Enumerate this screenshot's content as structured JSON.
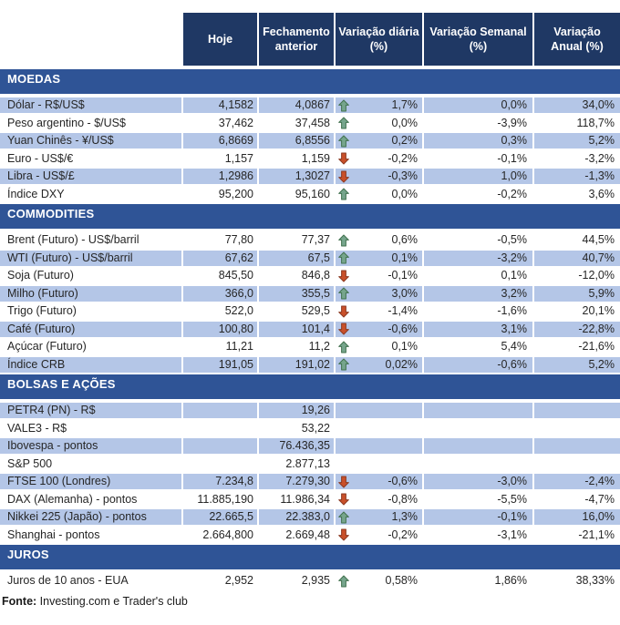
{
  "header": {
    "columns": [
      {
        "label": "Hoje",
        "lines": [
          "Hoje"
        ]
      },
      {
        "label": "Fechamento anterior",
        "lines": [
          "Fechamento",
          "anterior"
        ]
      },
      {
        "label": "Variação diária (%)",
        "lines": [
          "Variação diária",
          "(%)"
        ]
      },
      {
        "label": "Variação Semanal (%)",
        "lines": [
          "Variação Semanal",
          "(%)"
        ]
      },
      {
        "label": "Variação Anual (%)",
        "lines": [
          "Variação",
          "Anual (%)"
        ]
      }
    ]
  },
  "sections": [
    {
      "title": "MOEDAS",
      "rows": [
        {
          "label": "Dólar - R$/US$",
          "hoje": "4,1582",
          "fechamento": "4,0867",
          "arrow": "up",
          "diaria": "1,7%",
          "semanal": "0,0%",
          "anual": "34,0%",
          "shaded": true
        },
        {
          "label": "Peso argentino - $/US$",
          "hoje": "37,462",
          "fechamento": "37,458",
          "arrow": "up",
          "diaria": "0,0%",
          "semanal": "-3,9%",
          "anual": "118,7%",
          "shaded": false
        },
        {
          "label": "Yuan Chinês - ¥/US$",
          "hoje": "6,8669",
          "fechamento": "6,8556",
          "arrow": "up",
          "diaria": "0,2%",
          "semanal": "0,3%",
          "anual": "5,2%",
          "shaded": true
        },
        {
          "label": "Euro - US$/€",
          "hoje": "1,157",
          "fechamento": "1,159",
          "arrow": "down",
          "diaria": "-0,2%",
          "semanal": "-0,1%",
          "anual": "-3,2%",
          "shaded": false
        },
        {
          "label": "Libra - US$/£",
          "hoje": "1,2986",
          "fechamento": "1,3027",
          "arrow": "down",
          "diaria": "-0,3%",
          "semanal": "1,0%",
          "anual": "-1,3%",
          "shaded": true
        },
        {
          "label": "Índice DXY",
          "hoje": "95,200",
          "fechamento": "95,160",
          "arrow": "up",
          "diaria": "0,0%",
          "semanal": "-0,2%",
          "anual": "3,6%",
          "shaded": false
        }
      ]
    },
    {
      "title": "COMMODITIES",
      "rows": [
        {
          "label": "Brent (Futuro) - US$/barril",
          "hoje": "77,80",
          "fechamento": "77,37",
          "arrow": "up",
          "diaria": "0,6%",
          "semanal": "-0,5%",
          "anual": "44,5%",
          "shaded": false
        },
        {
          "label": "WTI (Futuro) - US$/barril",
          "hoje": "67,62",
          "fechamento": "67,5",
          "arrow": "up",
          "diaria": "0,1%",
          "semanal": "-3,2%",
          "anual": "40,7%",
          "shaded": true
        },
        {
          "label": "Soja (Futuro)",
          "hoje": "845,50",
          "fechamento": "846,8",
          "arrow": "down",
          "diaria": "-0,1%",
          "semanal": "0,1%",
          "anual": "-12,0%",
          "shaded": false
        },
        {
          "label": "Milho (Futuro)",
          "hoje": "366,0",
          "fechamento": "355,5",
          "arrow": "up",
          "diaria": "3,0%",
          "semanal": "3,2%",
          "anual": "5,9%",
          "shaded": true
        },
        {
          "label": "Trigo (Futuro)",
          "hoje": "522,0",
          "fechamento": "529,5",
          "arrow": "down",
          "diaria": "-1,4%",
          "semanal": "-1,6%",
          "anual": "20,1%",
          "shaded": false
        },
        {
          "label": "Café (Futuro)",
          "hoje": "100,80",
          "fechamento": "101,4",
          "arrow": "down",
          "diaria": "-0,6%",
          "semanal": "3,1%",
          "anual": "-22,8%",
          "shaded": true
        },
        {
          "label": "Açúcar (Futuro)",
          "hoje": "11,21",
          "fechamento": "11,2",
          "arrow": "up",
          "diaria": "0,1%",
          "semanal": "5,4%",
          "anual": "-21,6%",
          "shaded": false
        },
        {
          "label": "Índice CRB",
          "hoje": "191,05",
          "fechamento": "191,02",
          "arrow": "up",
          "diaria": "0,02%",
          "semanal": "-0,6%",
          "anual": "5,2%",
          "shaded": true
        }
      ]
    },
    {
      "title": "BOLSAS E AÇÕES",
      "rows": [
        {
          "label": "PETR4 (PN) - R$",
          "hoje": "",
          "fechamento": "19,26",
          "arrow": "none",
          "diaria": "",
          "semanal": "",
          "anual": "",
          "shaded": true
        },
        {
          "label": "VALE3 - R$",
          "hoje": "",
          "fechamento": "53,22",
          "arrow": "none",
          "diaria": "",
          "semanal": "",
          "anual": "",
          "shaded": false
        },
        {
          "label": "Ibovespa - pontos",
          "hoje": "",
          "fechamento": "76.436,35",
          "arrow": "none",
          "diaria": "",
          "semanal": "",
          "anual": "",
          "shaded": true
        },
        {
          "label": "S&P 500",
          "hoje": "",
          "fechamento": "2.877,13",
          "arrow": "none",
          "diaria": "",
          "semanal": "",
          "anual": "",
          "shaded": false
        },
        {
          "label": "FTSE 100 (Londres)",
          "hoje": "7.234,8",
          "fechamento": "7.279,30",
          "arrow": "down",
          "diaria": "-0,6%",
          "semanal": "-3,0%",
          "anual": "-2,4%",
          "shaded": true
        },
        {
          "label": "DAX (Alemanha) - pontos",
          "hoje": "11.885,190",
          "fechamento": "11.986,34",
          "arrow": "down",
          "diaria": "-0,8%",
          "semanal": "-5,5%",
          "anual": "-4,7%",
          "shaded": false
        },
        {
          "label": "Nikkei 225 (Japão) - pontos",
          "hoje": "22.665,5",
          "fechamento": "22.383,0",
          "arrow": "up",
          "diaria": "1,3%",
          "semanal": "-0,1%",
          "anual": "16,0%",
          "shaded": true
        },
        {
          "label": "Shanghai - pontos",
          "hoje": "2.664,800",
          "fechamento": "2.669,48",
          "arrow": "down",
          "diaria": "-0,2%",
          "semanal": "-3,1%",
          "anual": "-21,1%",
          "shaded": false
        }
      ]
    },
    {
      "title": "JUROS",
      "rows": [
        {
          "label": "Juros de 10 anos - EUA",
          "hoje": "2,952",
          "fechamento": "2,935",
          "arrow": "up",
          "diaria": "0,58%",
          "semanal": "1,86%",
          "anual": "38,33%",
          "shaded": false
        }
      ]
    }
  ],
  "footer": {
    "label": "Fonte:",
    "text": " Investing.com e Trader's club"
  },
  "colors": {
    "header_bg": "#1F3864",
    "section_bg": "#2F5496",
    "band_row": "#B4C6E7",
    "text": "#262626",
    "arrow_up_fill": "#76A58C",
    "arrow_up_stroke": "#41714E",
    "arrow_down_fill": "#C9502A",
    "arrow_down_stroke": "#8C3A22"
  }
}
